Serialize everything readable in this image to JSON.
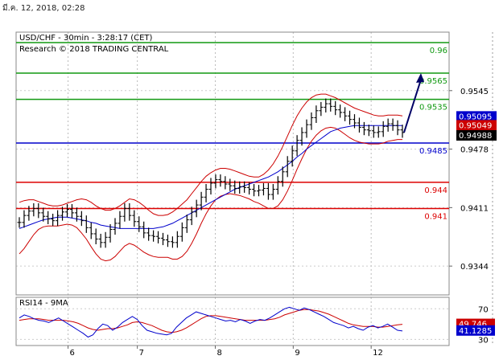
{
  "timestamp": "มี.ค. 12, 2018, 02:28",
  "header": {
    "title": "USD/CHF - 30min - 3:28:17 (CET)",
    "copyright": "Research © 2018 TRADING CENTRAL"
  },
  "colors": {
    "resistance": "#119911",
    "support": "#dd0000",
    "pivot": "#0000cc",
    "price": "#000000",
    "bollinger": "#cc0000",
    "moving_average": "#0000cc",
    "rsi": "#0000cc",
    "rsi_signal": "#cc0000",
    "label_blue": "#0000cc",
    "label_red": "#cc0000",
    "label_black": "#000000"
  },
  "chart_data": {
    "type": "line",
    "title": "USD/CHF - 30min - 3:28:17 (CET)",
    "ylim": [
      0.9311,
      0.9612
    ],
    "y_ticks": [
      {
        "value": 0.9545,
        "label": "0.9545"
      },
      {
        "value": 0.9478,
        "label": "0.9478"
      },
      {
        "value": 0.9411,
        "label": "0.9411"
      },
      {
        "value": 0.9344,
        "label": "0.9344"
      }
    ],
    "x_ticks": [
      {
        "position": 0.12,
        "label": "6"
      },
      {
        "position": 0.28,
        "label": "7"
      },
      {
        "position": 0.46,
        "label": "8"
      },
      {
        "position": 0.64,
        "label": "9"
      },
      {
        "position": 0.82,
        "label": "12"
      }
    ],
    "levels": [
      {
        "name": "resistance",
        "value": 0.96,
        "label": "0.96",
        "color": "#119911"
      },
      {
        "name": "resistance",
        "value": 0.9565,
        "label": "0.9565",
        "color": "#119911"
      },
      {
        "name": "resistance",
        "value": 0.9535,
        "label": "0.9535",
        "color": "#119911"
      },
      {
        "name": "pivot",
        "value": 0.9485,
        "label": "0.9485",
        "color": "#0000cc"
      },
      {
        "name": "support",
        "value": 0.944,
        "label": "0.944",
        "color": "#dd0000"
      },
      {
        "name": "support",
        "value": 0.941,
        "label": "0.941",
        "color": "#dd0000"
      }
    ],
    "price_tags": [
      {
        "value": 0.95095,
        "label": "0.95095",
        "style": "blue"
      },
      {
        "value": 0.95049,
        "label": "0.95049",
        "style": "red"
      },
      {
        "value": 0.94988,
        "label": "0.94988",
        "style": "black"
      }
    ],
    "forecast_arrow": {
      "from": 0.9497,
      "to": 0.9565
    },
    "price_series": [
      0.9394,
      0.9402,
      0.9407,
      0.941,
      0.9405,
      0.9401,
      0.9398,
      0.9396,
      0.9402,
      0.9406,
      0.9409,
      0.9405,
      0.9401,
      0.9396,
      0.9388,
      0.9381,
      0.9375,
      0.9371,
      0.9377,
      0.9386,
      0.9393,
      0.9401,
      0.941,
      0.9402,
      0.9395,
      0.9389,
      0.9382,
      0.9379,
      0.9378,
      0.9376,
      0.9374,
      0.9372,
      0.9371,
      0.9378,
      0.9388,
      0.9397,
      0.9406,
      0.9414,
      0.9423,
      0.9432,
      0.9439,
      0.9443,
      0.9441,
      0.9438,
      0.9436,
      0.9433,
      0.9435,
      0.9434,
      0.9432,
      0.943,
      0.9431,
      0.9433,
      0.9426,
      0.9432,
      0.9441,
      0.9452,
      0.9464,
      0.9476,
      0.9488,
      0.9497,
      0.9506,
      0.9514,
      0.9522,
      0.9526,
      0.953,
      0.9527,
      0.9523,
      0.952,
      0.9516,
      0.9512,
      0.9508,
      0.9503,
      0.95,
      0.9499,
      0.9497,
      0.9498,
      0.9504,
      0.9507,
      0.9505,
      0.95,
      0.9497
    ],
    "bollinger_upper": [
      0.9417,
      0.9419,
      0.942,
      0.942,
      0.9418,
      0.9416,
      0.9414,
      0.9413,
      0.9413,
      0.9414,
      0.9416,
      0.9418,
      0.942,
      0.9421,
      0.942,
      0.9417,
      0.9413,
      0.941,
      0.9408,
      0.9408,
      0.941,
      0.9413,
      0.9417,
      0.9421,
      0.942,
      0.9417,
      0.9413,
      0.9408,
      0.9404,
      0.9402,
      0.9402,
      0.9403,
      0.9406,
      0.941,
      0.9415,
      0.942,
      0.9427,
      0.9434,
      0.9441,
      0.9447,
      0.9451,
      0.9454,
      0.9456,
      0.9456,
      0.9455,
      0.9453,
      0.9451,
      0.9449,
      0.9447,
      0.9446,
      0.9446,
      0.9449,
      0.9454,
      0.9461,
      0.947,
      0.9481,
      0.9493,
      0.9505,
      0.9516,
      0.9525,
      0.9532,
      0.9537,
      0.954,
      0.9541,
      0.9541,
      0.9539,
      0.9537,
      0.9534,
      0.9531,
      0.9528,
      0.9525,
      0.9523,
      0.9521,
      0.9519,
      0.9517,
      0.9516,
      0.9516,
      0.9517,
      0.9517,
      0.9517,
      0.9516
    ],
    "bollinger_lower": [
      0.9358,
      0.9364,
      0.9372,
      0.938,
      0.9386,
      0.9389,
      0.939,
      0.939,
      0.939,
      0.9391,
      0.9392,
      0.9391,
      0.9388,
      0.9382,
      0.9375,
      0.9366,
      0.9358,
      0.9352,
      0.935,
      0.9351,
      0.9355,
      0.9361,
      0.9367,
      0.937,
      0.9368,
      0.9364,
      0.936,
      0.9357,
      0.9355,
      0.9354,
      0.9354,
      0.9354,
      0.9352,
      0.9352,
      0.9355,
      0.9361,
      0.937,
      0.9381,
      0.9393,
      0.9404,
      0.9413,
      0.942,
      0.9424,
      0.9426,
      0.9427,
      0.9426,
      0.9425,
      0.9423,
      0.9421,
      0.9418,
      0.9416,
      0.9413,
      0.941,
      0.941,
      0.9413,
      0.942,
      0.943,
      0.9442,
      0.9455,
      0.9467,
      0.9478,
      0.9487,
      0.9494,
      0.9499,
      0.9502,
      0.9503,
      0.9502,
      0.9499,
      0.9495,
      0.9491,
      0.9488,
      0.9486,
      0.9485,
      0.9484,
      0.9484,
      0.9484,
      0.9485,
      0.9487,
      0.9488,
      0.9489,
      0.9489
    ],
    "moving_average": [
      0.9387,
      0.9389,
      0.9391,
      0.9393,
      0.9395,
      0.9397,
      0.9398,
      0.9399,
      0.94,
      0.94,
      0.94,
      0.9399,
      0.9398,
      0.9397,
      0.9396,
      0.9394,
      0.9393,
      0.9391,
      0.939,
      0.9389,
      0.9388,
      0.9387,
      0.9387,
      0.9387,
      0.9387,
      0.9387,
      0.9387,
      0.9387,
      0.9387,
      0.9388,
      0.9389,
      0.9391,
      0.9393,
      0.9396,
      0.9399,
      0.9402,
      0.9405,
      0.9408,
      0.9411,
      0.9414,
      0.9417,
      0.942,
      0.9423,
      0.9426,
      0.9429,
      0.9432,
      0.9434,
      0.9436,
      0.9438,
      0.944,
      0.9442,
      0.9444,
      0.9446,
      0.9449,
      0.9452,
      0.9456,
      0.946,
      0.9464,
      0.9469,
      0.9473,
      0.9478,
      0.9482,
      0.9486,
      0.949,
      0.9494,
      0.9498,
      0.95,
      0.9502,
      0.9503,
      0.9504,
      0.9505,
      0.9505,
      0.9505,
      0.9505,
      0.9505,
      0.9505,
      0.9505,
      0.9505,
      0.9505,
      0.9505,
      0.9505
    ],
    "rsi_panel": {
      "title": "RSI14 - 9MA",
      "ylim": [
        22,
        85
      ],
      "y_ticks": [
        {
          "value": 70,
          "label": "70"
        },
        {
          "value": 30,
          "label": "30"
        }
      ],
      "value_tags": [
        {
          "value": 49.746,
          "label": "49.746",
          "style": "red"
        },
        {
          "value": 41.1285,
          "label": "41.1285",
          "style": "blue"
        }
      ],
      "rsi": [
        58,
        62,
        60,
        57,
        55,
        54,
        52,
        55,
        58,
        54,
        50,
        46,
        42,
        38,
        33,
        36,
        44,
        50,
        48,
        42,
        46,
        52,
        56,
        60,
        56,
        48,
        42,
        40,
        38,
        37,
        36,
        38,
        46,
        52,
        58,
        62,
        66,
        64,
        62,
        60,
        58,
        56,
        54,
        55,
        53,
        56,
        54,
        51,
        54,
        56,
        55,
        58,
        62,
        66,
        70,
        72,
        70,
        68,
        71,
        69,
        66,
        63,
        60,
        56,
        52,
        50,
        48,
        45,
        47,
        44,
        42,
        46,
        48,
        45,
        47,
        50,
        46,
        42,
        41
      ],
      "signal": [
        55,
        56,
        57,
        57,
        57,
        56,
        55,
        55,
        55,
        55,
        54,
        53,
        51,
        48,
        45,
        43,
        42,
        43,
        44,
        44,
        45,
        47,
        49,
        52,
        53,
        52,
        50,
        48,
        45,
        42,
        40,
        39,
        40,
        42,
        45,
        49,
        53,
        57,
        60,
        61,
        61,
        60,
        59,
        58,
        57,
        56,
        55,
        55,
        55,
        55,
        55,
        56,
        57,
        59,
        62,
        64,
        66,
        68,
        69,
        69,
        68,
        67,
        65,
        63,
        60,
        57,
        54,
        51,
        49,
        48,
        47,
        47,
        47,
        46,
        46,
        47,
        48,
        49,
        49.7
      ]
    }
  }
}
